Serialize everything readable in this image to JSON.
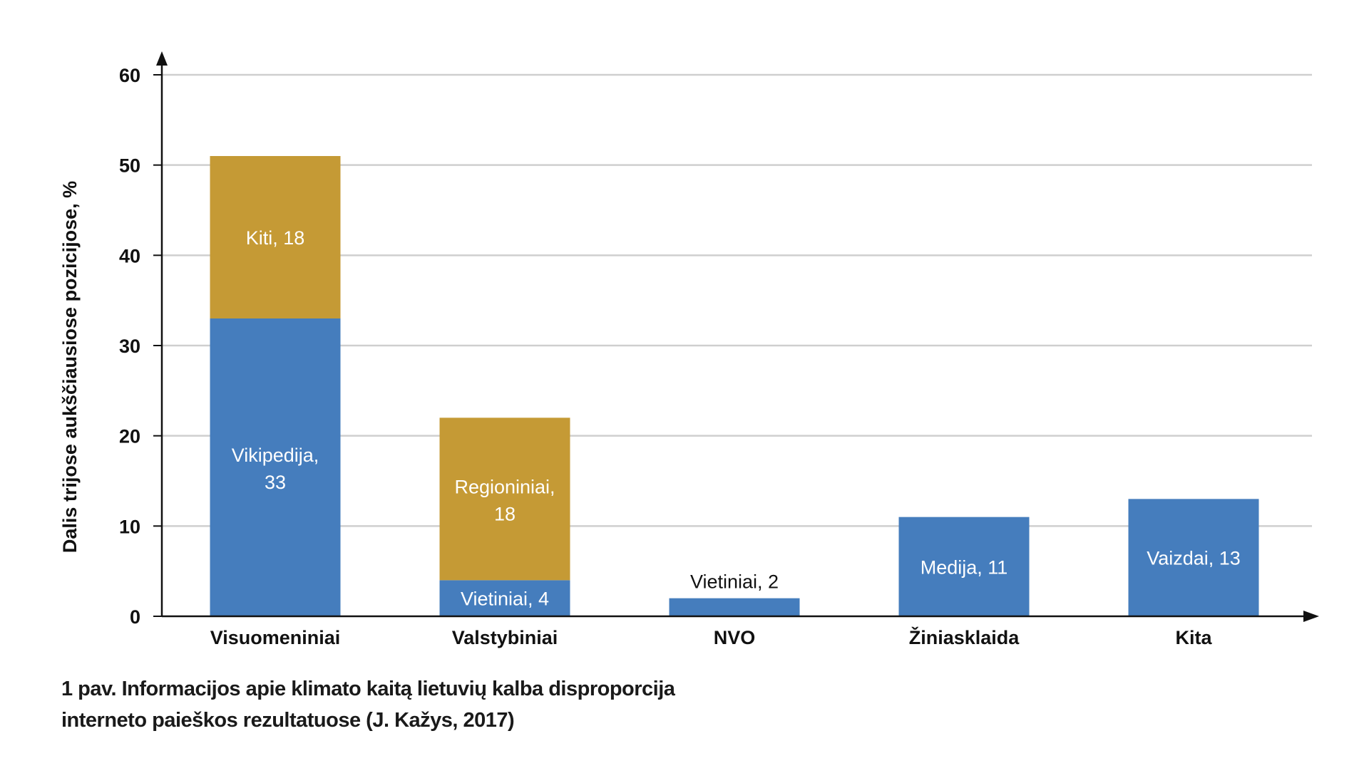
{
  "chart_data": {
    "type": "bar",
    "stacked": true,
    "ylabel": "Dalis trijose aukščiausiose pozicijose, %",
    "xlabel": "",
    "ylim": [
      0,
      60
    ],
    "yticks": [
      0,
      10,
      20,
      30,
      40,
      50,
      60
    ],
    "grid": true,
    "categories": [
      "Visuomeniniai",
      "Valstybiniai",
      "NVO",
      "Žiniasklaida",
      "Kita"
    ],
    "segments": [
      [
        {
          "label": "Vikipedija,",
          "label2": "33",
          "value": 33,
          "color": "#457dbd"
        },
        {
          "label": "Kiti, 18",
          "value": 18,
          "color": "#c59a35"
        }
      ],
      [
        {
          "label": "Vietiniai, 4",
          "value": 4,
          "color": "#457dbd"
        },
        {
          "label": "Regioniniai,",
          "label2": "18",
          "value": 18,
          "color": "#c59a35"
        }
      ],
      [
        {
          "label": "Vietiniai, 2",
          "value": 2,
          "color": "#457dbd",
          "label_outside": true
        }
      ],
      [
        {
          "label": "Medija, 11",
          "value": 11,
          "color": "#457dbd"
        }
      ],
      [
        {
          "label": "Vaizdai, 13",
          "value": 13,
          "color": "#457dbd"
        }
      ]
    ]
  },
  "caption": {
    "line1": "1 pav. Informacijos apie klimato kaitą lietuvių kalba disproporcija",
    "line2": "interneto paieškos rezultatuose (J. Kažys, 2017)"
  }
}
